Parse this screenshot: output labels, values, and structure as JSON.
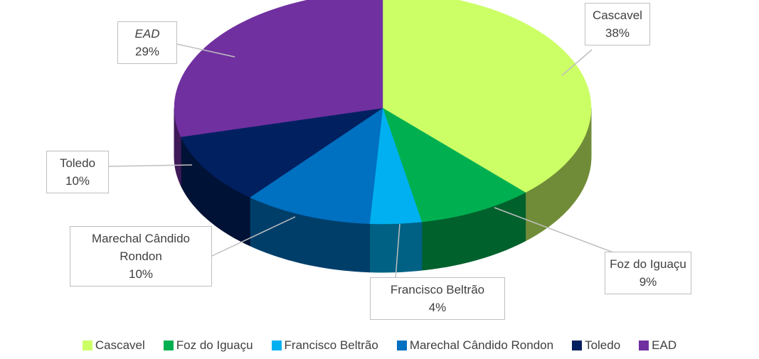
{
  "chart_data": {
    "type": "pie",
    "categories": [
      "Cascavel",
      "Foz do Iguaçu",
      "Francisco Beltrão",
      "Marechal Cândido Rondon",
      "Toledo",
      "EAD"
    ],
    "values": [
      38,
      9,
      4,
      10,
      10,
      29
    ],
    "value_labels": [
      "38%",
      "9%",
      "4%",
      "10%",
      "10%",
      "29%"
    ],
    "colors": [
      "#ccff66",
      "#00b050",
      "#00b0f0",
      "#0070c0",
      "#002060",
      "#7030a0"
    ],
    "legend": "bottom"
  }
}
